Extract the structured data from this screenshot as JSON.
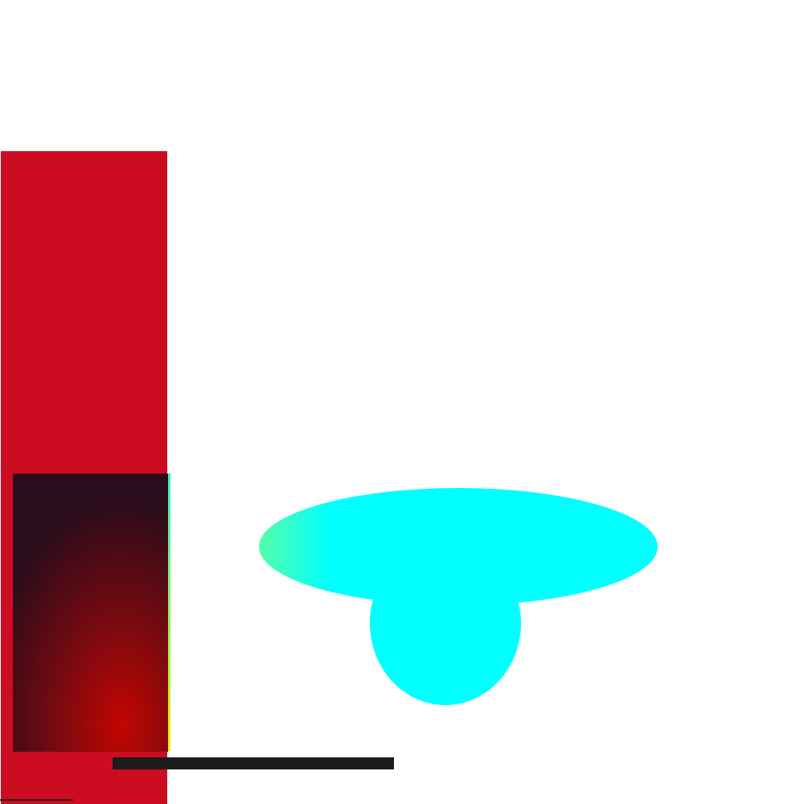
{
  "colors": {
    "background": "#ffffff",
    "red_column": "#cc0c20",
    "panel_gradient_dark": "#2a0c1a",
    "panel_gradient_mid": "#7a0a10",
    "panel_gradient_bright": "#c20600",
    "stripe_top": "#3cf0c8",
    "stripe_bottom": "#e8f000",
    "black_bar": "#1c1c1c",
    "bottom_line": "#222222",
    "blob_cyan": "#00ffff",
    "blob_edge": "#55ffaa"
  }
}
